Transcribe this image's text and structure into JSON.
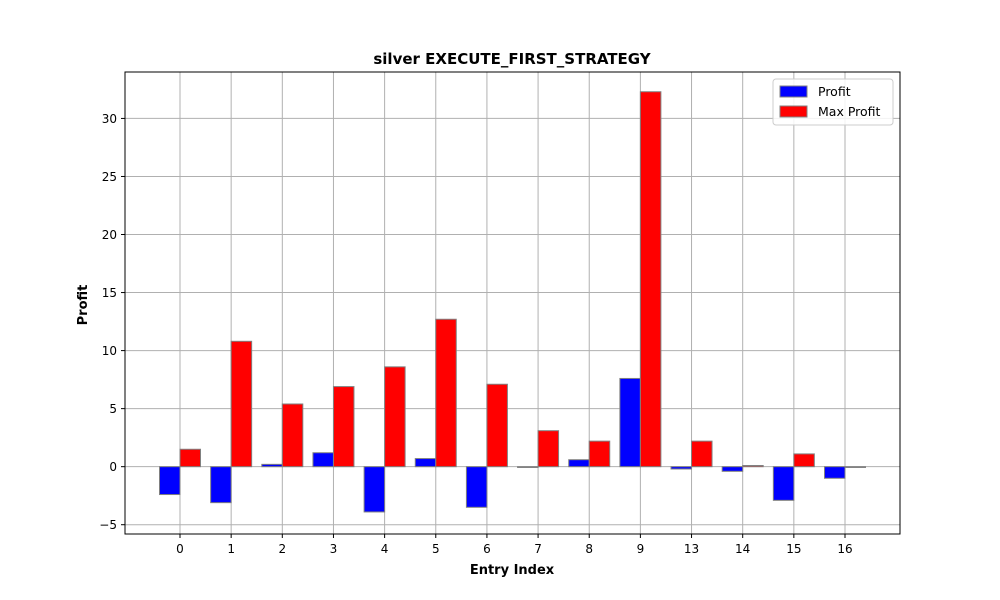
{
  "chart_data": {
    "type": "bar",
    "title": "silver EXECUTE_FIRST_STRATEGY",
    "xlabel": "Entry Index",
    "ylabel": "Profit",
    "categories": [
      "0",
      "1",
      "2",
      "3",
      "4",
      "5",
      "6",
      "7",
      "8",
      "9",
      "13",
      "14",
      "15",
      "16"
    ],
    "series": [
      {
        "name": "Profit",
        "color": "#0000ff",
        "values": [
          -2.4,
          -3.1,
          0.2,
          1.2,
          -3.9,
          0.7,
          -3.5,
          0.0,
          0.6,
          7.6,
          -0.2,
          -0.4,
          -2.9,
          -1.0
        ]
      },
      {
        "name": "Max Profit",
        "color": "#ff0000",
        "values": [
          1.5,
          10.8,
          5.4,
          6.9,
          8.6,
          12.7,
          7.1,
          3.1,
          2.2,
          32.3,
          2.2,
          0.1,
          1.1,
          0.0
        ]
      }
    ],
    "ylim": [
      -5.8,
      34.0
    ],
    "yticks": [
      -5,
      0,
      5,
      10,
      15,
      20,
      25,
      30
    ],
    "grid": true,
    "legend_position": "top-right"
  }
}
